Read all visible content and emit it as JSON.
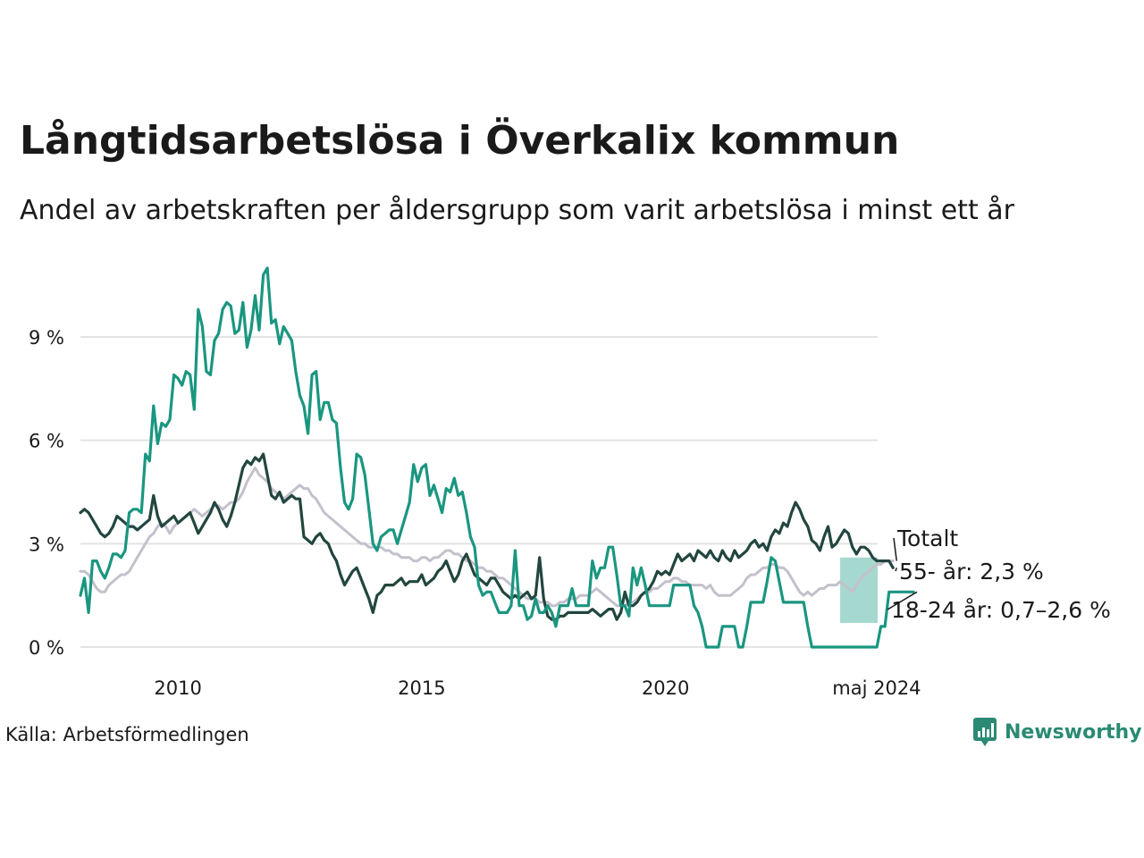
{
  "title": "Långtidsarbetslösa i Överkalix kommun",
  "subtitle": "Andel av arbetskraften per åldersgrupp som varit arbetslösa i minst ett år",
  "source": "Källa: Arbetsförmedlingen",
  "brand": {
    "name": "Newsworthy",
    "icon": "newsworthy-logo-icon"
  },
  "colors": {
    "youth": "#1a9680",
    "senior": "#22463f",
    "total": "#c4c0cc",
    "band": "#a5d9cf",
    "grid": "#e3e3e3"
  },
  "chart_data": {
    "type": "line",
    "title": "Långtidsarbetslösa i Överkalix kommun",
    "xlabel": "",
    "ylabel": "",
    "x_start": 2008.0,
    "x_step": 0.08333,
    "xlim": [
      2008.0,
      2024.35
    ],
    "ylim": [
      0,
      11.5
    ],
    "yticks": [
      0,
      3,
      6,
      9
    ],
    "ytick_labels": [
      "0 %",
      "3 %",
      "6 %",
      "9 %"
    ],
    "xticks": [
      2010,
      2015,
      2020,
      2024.33
    ],
    "xtick_labels": [
      "2010",
      "2015",
      "2020",
      "maj 2024"
    ],
    "series": [
      {
        "name": "Totalt",
        "key": "total",
        "values": [
          2.2,
          2.2,
          2.1,
          1.9,
          1.7,
          1.6,
          1.6,
          1.8,
          1.9,
          2.0,
          2.1,
          2.1,
          2.2,
          2.4,
          2.6,
          2.8,
          3.0,
          3.2,
          3.3,
          3.5,
          3.6,
          3.5,
          3.3,
          3.5,
          3.6,
          3.7,
          3.8,
          3.9,
          4.0,
          3.9,
          3.8,
          3.9,
          4.0,
          4.1,
          4.1,
          4.0,
          4.1,
          4.2,
          4.2,
          4.3,
          4.5,
          4.8,
          5.0,
          5.2,
          5.0,
          4.9,
          4.8,
          4.6,
          4.5,
          4.4,
          4.3,
          4.4,
          4.5,
          4.6,
          4.7,
          4.6,
          4.6,
          4.4,
          4.3,
          4.1,
          3.9,
          3.8,
          3.7,
          3.6,
          3.5,
          3.4,
          3.3,
          3.2,
          3.1,
          3.0,
          3.0,
          2.9,
          2.9,
          2.9,
          2.9,
          2.8,
          2.8,
          2.7,
          2.7,
          2.6,
          2.6,
          2.6,
          2.5,
          2.5,
          2.6,
          2.6,
          2.5,
          2.6,
          2.6,
          2.7,
          2.8,
          2.8,
          2.7,
          2.7,
          2.6,
          2.5,
          2.5,
          2.4,
          2.3,
          2.3,
          2.2,
          2.2,
          2.1,
          2.0,
          2.0,
          1.9,
          1.8,
          1.7,
          1.6,
          1.5,
          1.4,
          1.4,
          1.4,
          1.3,
          1.3,
          1.3,
          1.2,
          1.2,
          1.3,
          1.3,
          1.4,
          1.4,
          1.4,
          1.5,
          1.5,
          1.5,
          1.6,
          1.7,
          1.6,
          1.5,
          1.4,
          1.3,
          1.2,
          1.2,
          1.2,
          1.3,
          1.3,
          1.4,
          1.5,
          1.6,
          1.6,
          1.7,
          1.7,
          1.8,
          1.9,
          1.9,
          2.0,
          2.0,
          1.9,
          1.9,
          1.8,
          1.8,
          1.8,
          1.8,
          1.7,
          1.8,
          1.6,
          1.5,
          1.5,
          1.5,
          1.5,
          1.6,
          1.7,
          1.8,
          2.0,
          2.1,
          2.1,
          2.2,
          2.3,
          2.3,
          2.4,
          2.4,
          2.3,
          2.3,
          2.2,
          2.0,
          1.8,
          1.6,
          1.5,
          1.6,
          1.5,
          1.6,
          1.7,
          1.7,
          1.8,
          1.8,
          1.8,
          1.9,
          1.8,
          1.7,
          1.6,
          1.8,
          2.0,
          2.1,
          2.2,
          2.3,
          2.4,
          2.4,
          2.5,
          2.5,
          2.5
        ]
      },
      {
        "name": "55- år",
        "key": "senior",
        "values": [
          3.9,
          4.0,
          3.9,
          3.7,
          3.5,
          3.3,
          3.2,
          3.3,
          3.5,
          3.8,
          3.7,
          3.6,
          3.5,
          3.5,
          3.4,
          3.5,
          3.6,
          3.7,
          4.4,
          3.8,
          3.5,
          3.6,
          3.7,
          3.8,
          3.6,
          3.7,
          3.8,
          3.9,
          3.6,
          3.3,
          3.5,
          3.7,
          3.9,
          4.2,
          4.0,
          3.7,
          3.5,
          3.8,
          4.2,
          4.7,
          5.2,
          5.4,
          5.3,
          5.5,
          5.4,
          5.6,
          5.0,
          4.4,
          4.3,
          4.5,
          4.2,
          4.3,
          4.4,
          4.3,
          4.3,
          3.2,
          3.1,
          3.0,
          3.2,
          3.3,
          3.1,
          3.0,
          2.7,
          2.5,
          2.1,
          1.8,
          2.0,
          2.2,
          2.3,
          2.0,
          1.7,
          1.4,
          1.0,
          1.5,
          1.6,
          1.8,
          1.8,
          1.8,
          1.9,
          2.0,
          1.8,
          1.9,
          1.9,
          1.9,
          2.1,
          1.8,
          1.9,
          2.0,
          2.2,
          2.3,
          2.5,
          2.2,
          1.9,
          2.1,
          2.5,
          2.7,
          2.4,
          2.1,
          2.0,
          1.9,
          1.8,
          2.0,
          2.0,
          1.8,
          1.6,
          1.5,
          1.4,
          1.5,
          1.4,
          1.5,
          1.6,
          1.4,
          1.5,
          2.6,
          1.4,
          0.9,
          0.8,
          0.8,
          0.9,
          0.9,
          1.0,
          1.0,
          1.0,
          1.0,
          1.0,
          1.0,
          1.1,
          1.0,
          0.9,
          1.0,
          1.1,
          1.1,
          0.8,
          1.0,
          1.6,
          1.2,
          1.2,
          1.3,
          1.5,
          1.6,
          1.7,
          1.9,
          2.2,
          2.1,
          2.2,
          2.1,
          2.4,
          2.7,
          2.5,
          2.6,
          2.7,
          2.5,
          2.8,
          2.7,
          2.6,
          2.8,
          2.6,
          2.5,
          2.8,
          2.6,
          2.5,
          2.8,
          2.6,
          2.7,
          2.8,
          3.0,
          3.1,
          2.9,
          3.0,
          2.8,
          3.2,
          3.4,
          3.3,
          3.6,
          3.5,
          3.9,
          4.2,
          4.0,
          3.7,
          3.5,
          3.1,
          3.0,
          2.8,
          3.2,
          3.5,
          2.9,
          3.0,
          3.2,
          3.4,
          3.3,
          2.9,
          2.7,
          2.9,
          2.9,
          2.8,
          2.6,
          2.5,
          2.5,
          2.5,
          2.5,
          2.3
        ]
      },
      {
        "name": "18-24 år",
        "key": "youth",
        "values": [
          1.5,
          2.0,
          1.0,
          2.5,
          2.5,
          2.2,
          2.0,
          2.3,
          2.7,
          2.7,
          2.6,
          2.8,
          3.9,
          4.0,
          4.0,
          3.9,
          5.6,
          5.4,
          7.0,
          5.9,
          6.5,
          6.4,
          6.6,
          7.9,
          7.8,
          7.6,
          8.0,
          7.9,
          6.9,
          9.8,
          9.3,
          8.0,
          7.9,
          8.9,
          9.1,
          9.8,
          10.0,
          9.9,
          9.1,
          9.2,
          10.0,
          8.7,
          9.2,
          10.2,
          9.2,
          10.8,
          11.0,
          9.4,
          9.5,
          8.8,
          9.3,
          9.1,
          8.9,
          8.0,
          7.3,
          7.0,
          6.2,
          7.9,
          8.0,
          6.6,
          7.1,
          7.1,
          6.6,
          6.5,
          5.2,
          4.2,
          4.0,
          4.3,
          5.6,
          5.5,
          5.0,
          4.0,
          3.0,
          2.8,
          3.2,
          3.3,
          3.4,
          3.4,
          3.0,
          3.4,
          3.8,
          4.2,
          5.3,
          4.8,
          5.2,
          5.3,
          4.4,
          4.7,
          4.3,
          3.9,
          4.6,
          4.5,
          4.9,
          4.4,
          4.5,
          3.9,
          3.2,
          2.9,
          1.8,
          1.5,
          1.6,
          1.6,
          1.3,
          1.0,
          1.0,
          1.0,
          1.2,
          2.8,
          1.2,
          1.2,
          0.8,
          0.9,
          1.4,
          1.0,
          1.0,
          1.2,
          1.0,
          0.6,
          1.2,
          1.2,
          1.2,
          1.7,
          1.2,
          1.2,
          1.2,
          1.2,
          2.5,
          2.0,
          2.3,
          2.3,
          2.9,
          2.9,
          2.1,
          1.2,
          1.2,
          0.9,
          2.3,
          1.8,
          2.3,
          1.8,
          1.2,
          1.2,
          1.2,
          1.2,
          1.2,
          1.2,
          1.8,
          1.8,
          1.8,
          1.8,
          1.8,
          1.2,
          1.0,
          0.6,
          0.0,
          0.0,
          0.0,
          0.0,
          0.6,
          0.6,
          0.6,
          0.6,
          0.0,
          0.0,
          0.6,
          1.3,
          1.3,
          1.3,
          1.3,
          1.9,
          2.6,
          2.5,
          1.9,
          1.3,
          1.3,
          1.3,
          1.3,
          1.3,
          1.3,
          0.6,
          0.0,
          0.0,
          0.0,
          0.0,
          0.0,
          0.0,
          0.0,
          0.0,
          0.0,
          0.0,
          0.0,
          0.0,
          0.0,
          0.0,
          0.0,
          0.0,
          0.0,
          0.6,
          0.6,
          1.6,
          1.6,
          1.6,
          1.6,
          1.6,
          1.6,
          1.6
        ]
      }
    ],
    "band": {
      "name": "18-24 år",
      "x_from": 2023.58,
      "x_to": 2024.35,
      "low": 0.7,
      "high": 2.6
    },
    "annotations": [
      {
        "key": "total",
        "label": "Totalt"
      },
      {
        "key": "senior",
        "label": "55- år: 2,3 %"
      },
      {
        "key": "youth",
        "label": "18-24 år: 0,7–2,6 %"
      }
    ]
  }
}
